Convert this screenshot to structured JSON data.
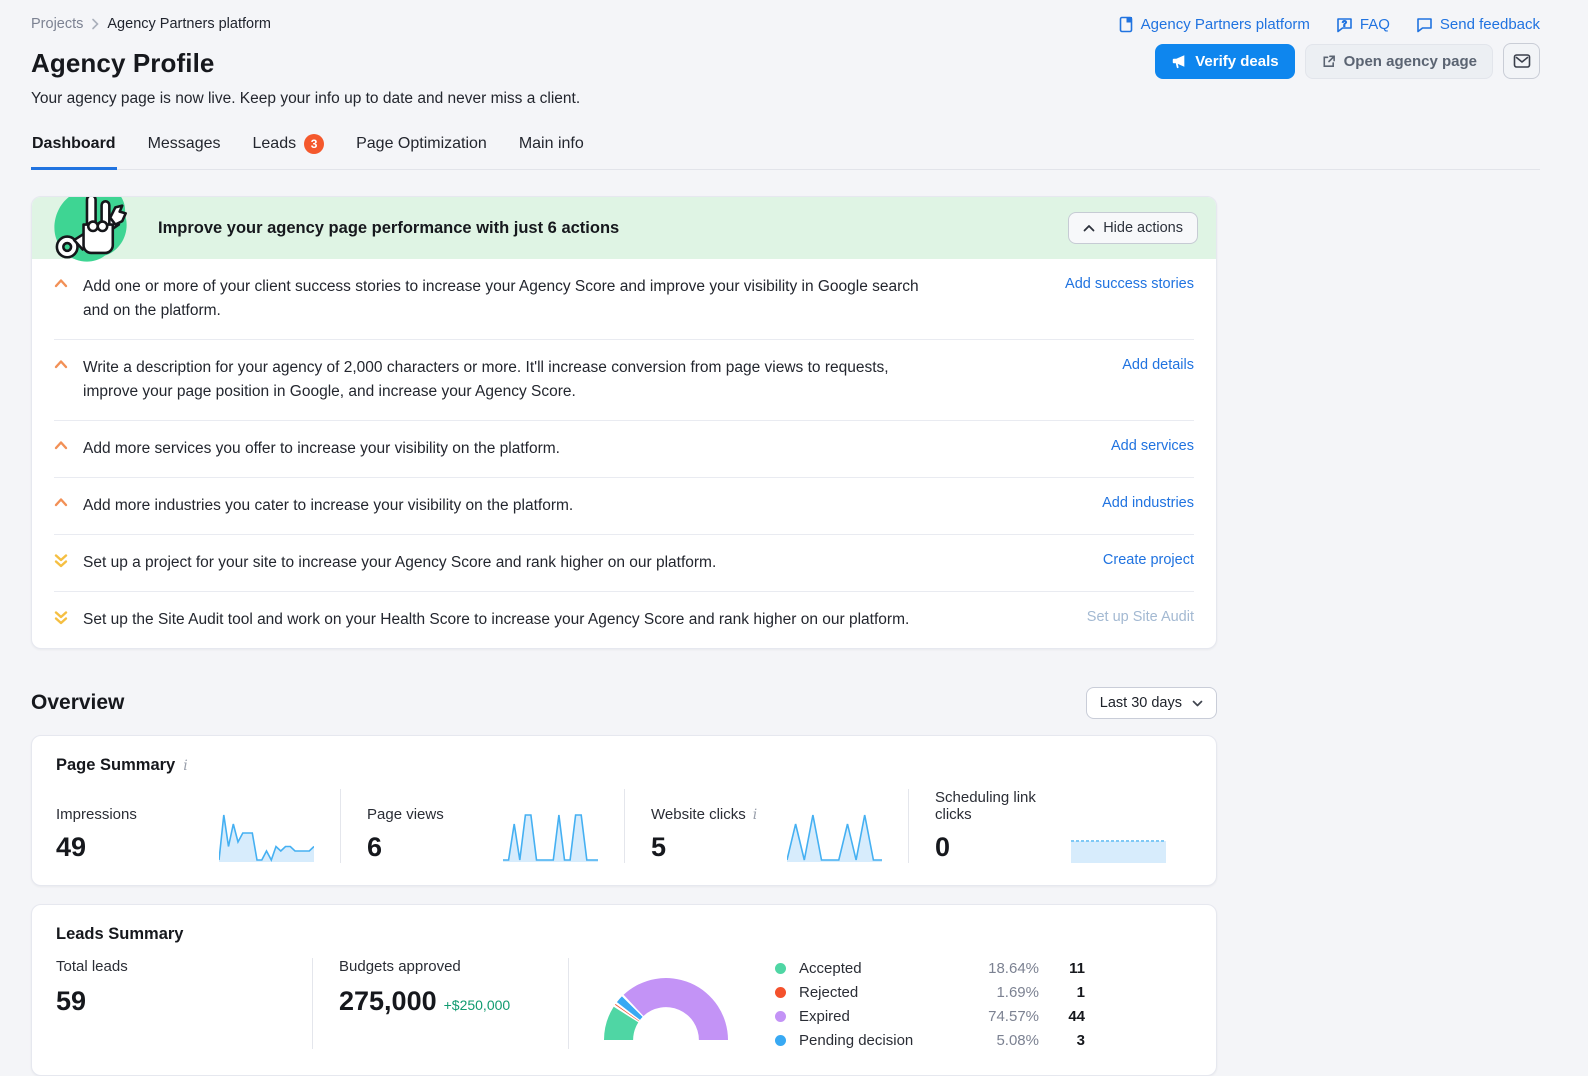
{
  "breadcrumb": {
    "items": [
      "Projects",
      "Agency Partners platform"
    ]
  },
  "header_links": [
    {
      "label": "Agency Partners platform",
      "icon": "doc-icon"
    },
    {
      "label": "FAQ",
      "icon": "faq-icon"
    },
    {
      "label": "Send feedback",
      "icon": "feedback-icon"
    }
  ],
  "page": {
    "title": "Agency Profile",
    "subtitle": "Your agency page is now live. Keep your info up to date and never miss a client."
  },
  "toolbar": {
    "verify_label": "Verify deals",
    "open_label": "Open agency page",
    "mail_icon": "envelope-icon"
  },
  "tabs": [
    {
      "label": "Dashboard",
      "active": true
    },
    {
      "label": "Messages"
    },
    {
      "label": "Leads",
      "badge": "3"
    },
    {
      "label": "Page Optimization"
    },
    {
      "label": "Main info"
    }
  ],
  "improve": {
    "title": "Improve your agency page performance with just 6 actions",
    "hide_button": "Hide actions",
    "items": [
      {
        "text": "Add one or more of your client success stories to increase your Agency Score and improve your visibility in Google search and on the platform.",
        "link": "Add success stories",
        "priority": "high",
        "disabled": false
      },
      {
        "text": "Write a description for your agency of 2,000 characters or more. It'll increase conversion from page views to requests, improve your page position in Google, and increase your Agency Score.",
        "link": "Add details",
        "priority": "high",
        "disabled": false
      },
      {
        "text": "Add more services you offer to increase your visibility on the platform.",
        "link": "Add services",
        "priority": "high",
        "disabled": false
      },
      {
        "text": "Add more industries you cater to increase your visibility on the platform.",
        "link": "Add industries",
        "priority": "high",
        "disabled": false
      },
      {
        "text": "Set up a project for your site to increase your Agency Score and rank higher on our platform.",
        "link": "Create project",
        "priority": "low",
        "disabled": false
      },
      {
        "text": "Set up the Site Audit tool and work on your Health Score to increase your Agency Score and rank higher on our platform.",
        "link": "Set up Site Audit",
        "priority": "low",
        "disabled": true
      }
    ]
  },
  "overview": {
    "title": "Overview",
    "date_range": "Last 30 days"
  },
  "page_summary": {
    "title": "Page Summary",
    "metrics": [
      {
        "label": "Impressions",
        "value": "49"
      },
      {
        "label": "Page views",
        "value": "6"
      },
      {
        "label": "Website clicks",
        "value": "5"
      },
      {
        "label": "Scheduling link clicks",
        "value": "0"
      }
    ]
  },
  "leads_summary": {
    "title": "Leads Summary",
    "total_label": "Total leads",
    "total_value": "59",
    "budget_label": "Budgets approved",
    "budget_value": "275,000",
    "budget_delta": "+$250,000",
    "legend": [
      {
        "label": "Accepted",
        "pct": "18.64%",
        "count": "11",
        "color": "#4fd6a4"
      },
      {
        "label": "Rejected",
        "pct": "1.69%",
        "count": "1",
        "color": "#f4512c"
      },
      {
        "label": "Expired",
        "pct": "74.57%",
        "count": "44",
        "color": "#c393f6"
      },
      {
        "label": "Pending decision",
        "pct": "5.08%",
        "count": "3",
        "color": "#38a9f3"
      }
    ]
  },
  "chart_data": [
    {
      "type": "area",
      "name": "impressions-sparkline",
      "title": "Impressions",
      "x_range": "Last 30 days",
      "values": [
        0,
        10,
        3,
        8,
        4,
        6,
        6,
        6,
        0,
        0,
        2,
        0,
        3,
        2,
        3,
        3,
        2,
        2,
        2,
        2,
        3
      ],
      "line_color": "#45b0f2",
      "fill_color": "#d7ecfc"
    },
    {
      "type": "area",
      "name": "page-views-sparkline",
      "title": "Page views",
      "x_range": "Last 30 days",
      "values": [
        0,
        0,
        8,
        0,
        10,
        10,
        0,
        0,
        0,
        0,
        10,
        0,
        0,
        10,
        10,
        0,
        0,
        0
      ],
      "line_color": "#45b0f2",
      "fill_color": "#d7ecfc"
    },
    {
      "type": "area",
      "name": "website-clicks-sparkline",
      "title": "Website clicks",
      "x_range": "Last 30 days",
      "values": [
        0,
        8,
        0,
        10,
        0,
        0,
        0,
        8,
        0,
        10,
        0,
        0
      ],
      "line_color": "#45b0f2",
      "fill_color": "#d7ecfc"
    },
    {
      "type": "area",
      "name": "scheduling-sparkline",
      "title": "Scheduling link clicks",
      "x_range": "Last 30 days",
      "values": [
        0,
        0,
        0,
        0,
        0,
        0,
        0,
        0,
        0,
        0
      ],
      "flat": true,
      "line_color": "#7ec8f5",
      "fill_color": "#d7ecfc"
    },
    {
      "type": "pie",
      "name": "leads-donut",
      "half_donut": true,
      "inner_radius_ratio": 0.53,
      "labels": [
        "Accepted",
        "Rejected",
        "Pending decision",
        "Expired"
      ],
      "values_pct": [
        18.64,
        1.69,
        5.08,
        74.57
      ],
      "counts": [
        11,
        1,
        3,
        44
      ],
      "colors": [
        "#4fd6a4",
        "#f4512c",
        "#38a9f3",
        "#c393f6"
      ],
      "title": "Leads by status"
    }
  ]
}
